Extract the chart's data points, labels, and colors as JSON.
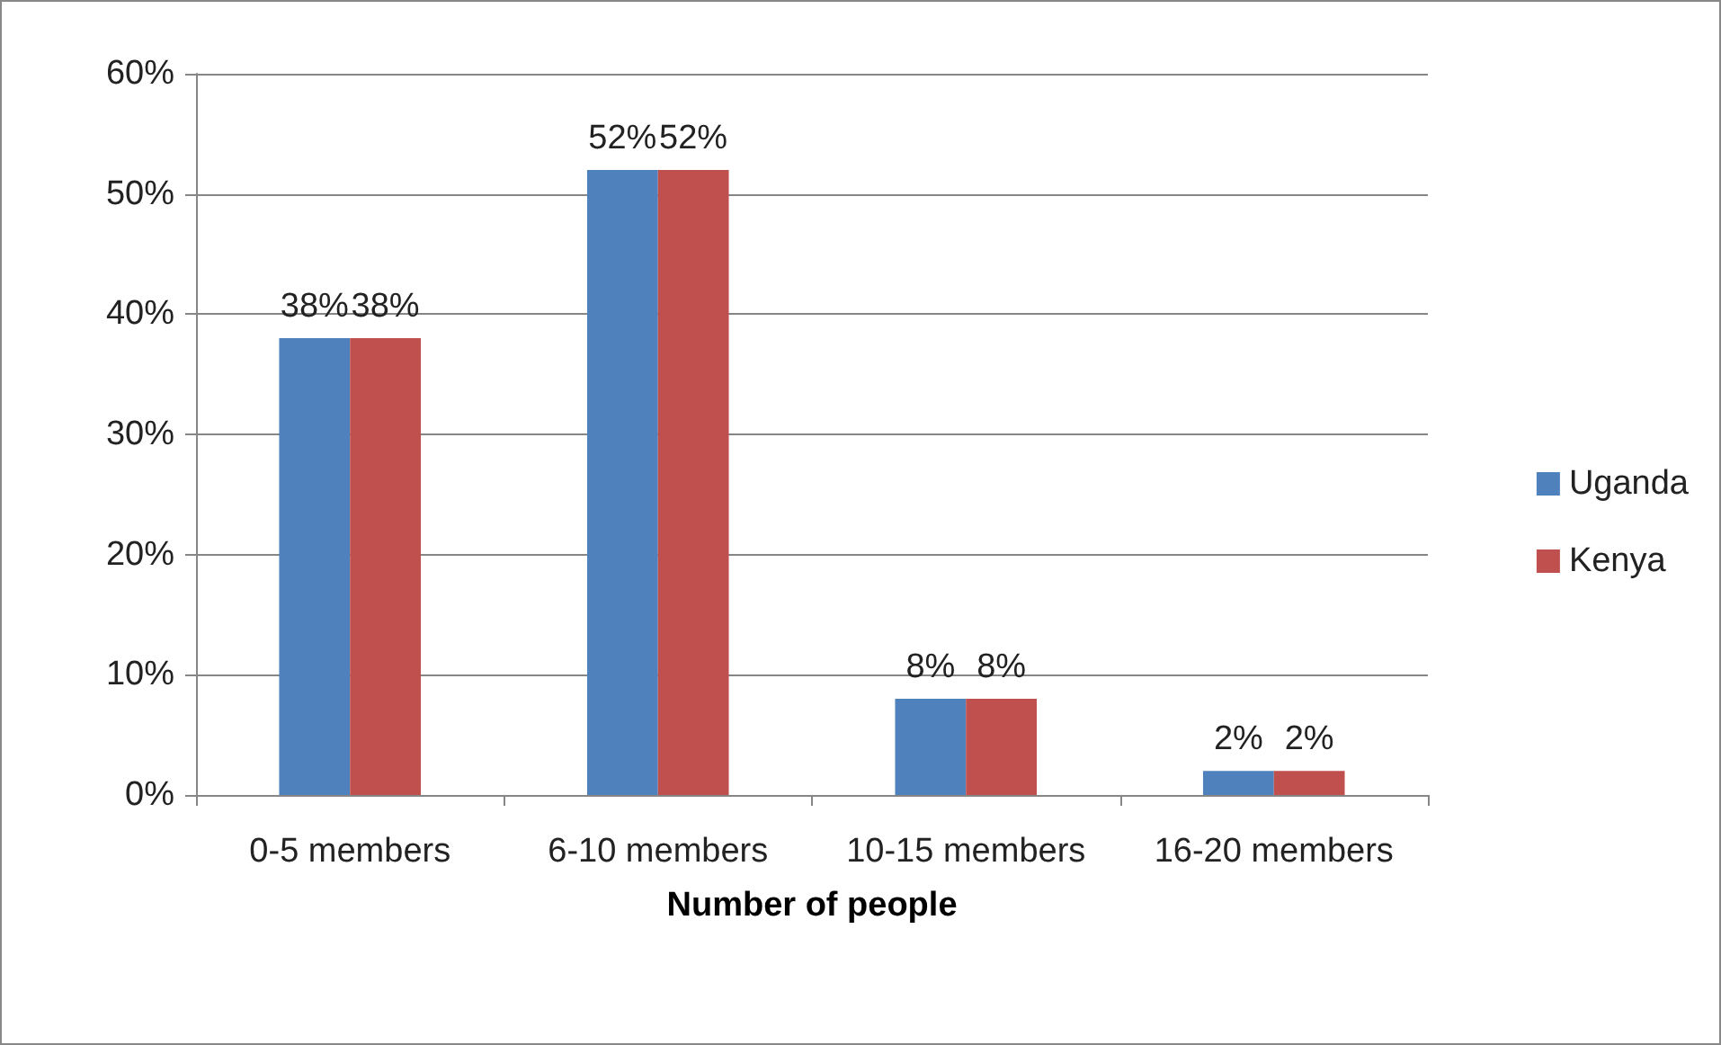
{
  "chart_data": {
    "type": "bar",
    "xlabel": "Number of people",
    "categories": [
      "0-5 members",
      "6-10 members",
      "10-15 members",
      "16-20 members"
    ],
    "series": [
      {
        "name": "Uganda",
        "color": "#4f81bd",
        "values": [
          38,
          52,
          8,
          2
        ],
        "value_labels": [
          "38%",
          "52%",
          "8%",
          "2%"
        ]
      },
      {
        "name": "Kenya",
        "color": "#c0504d",
        "values": [
          38,
          52,
          8,
          2
        ],
        "value_labels": [
          "38%",
          "52%",
          "8%",
          "2%"
        ]
      }
    ],
    "ylim": [
      0,
      60
    ],
    "yticks": [
      {
        "value": 0,
        "label": "0%"
      },
      {
        "value": 10,
        "label": "10%"
      },
      {
        "value": 20,
        "label": "20%"
      },
      {
        "value": 30,
        "label": "30%"
      },
      {
        "value": 40,
        "label": "40%"
      },
      {
        "value": 50,
        "label": "50%"
      },
      {
        "value": 60,
        "label": "60%"
      }
    ],
    "grid": "y",
    "legend": "right"
  }
}
